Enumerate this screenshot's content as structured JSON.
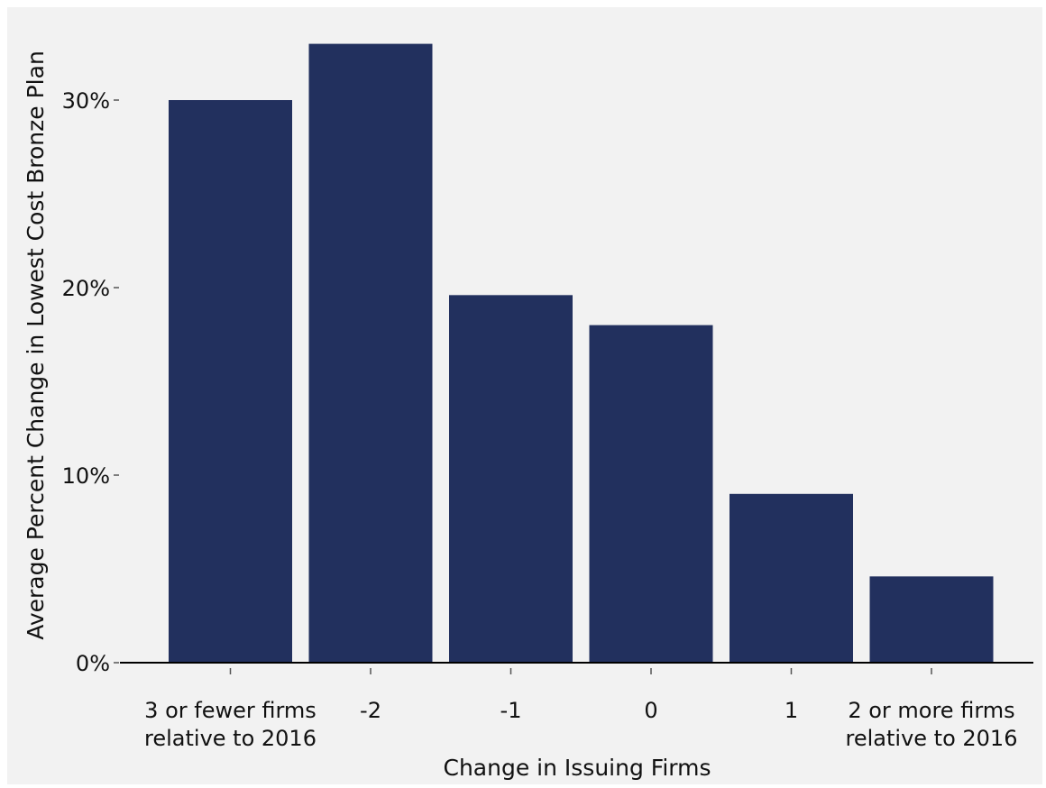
{
  "chart_data": {
    "type": "bar",
    "title": "",
    "xlabel": "Change in Issuing Firms",
    "ylabel": "Average Percent Change in Lowest Cost Bronze Plan",
    "categories": [
      [
        "3 or fewer firms",
        "relative to 2016"
      ],
      [
        "-2"
      ],
      [
        "-1"
      ],
      [
        "0"
      ],
      [
        "1"
      ],
      [
        "2 or more firms",
        "relative to 2016"
      ]
    ],
    "values": [
      30.0,
      33.0,
      19.6,
      18.0,
      9.0,
      4.6
    ],
    "value_unit": "percent",
    "ylim": [
      0,
      33
    ],
    "yticks": [
      0,
      10,
      20,
      30
    ],
    "ytick_labels": [
      "0%",
      "10%",
      "20%",
      "30%"
    ],
    "grid": false,
    "legend": "none"
  },
  "colors": {
    "bar": "#22305e",
    "background": "#f2f2f2",
    "axis": "#000000",
    "text": "#111111"
  }
}
